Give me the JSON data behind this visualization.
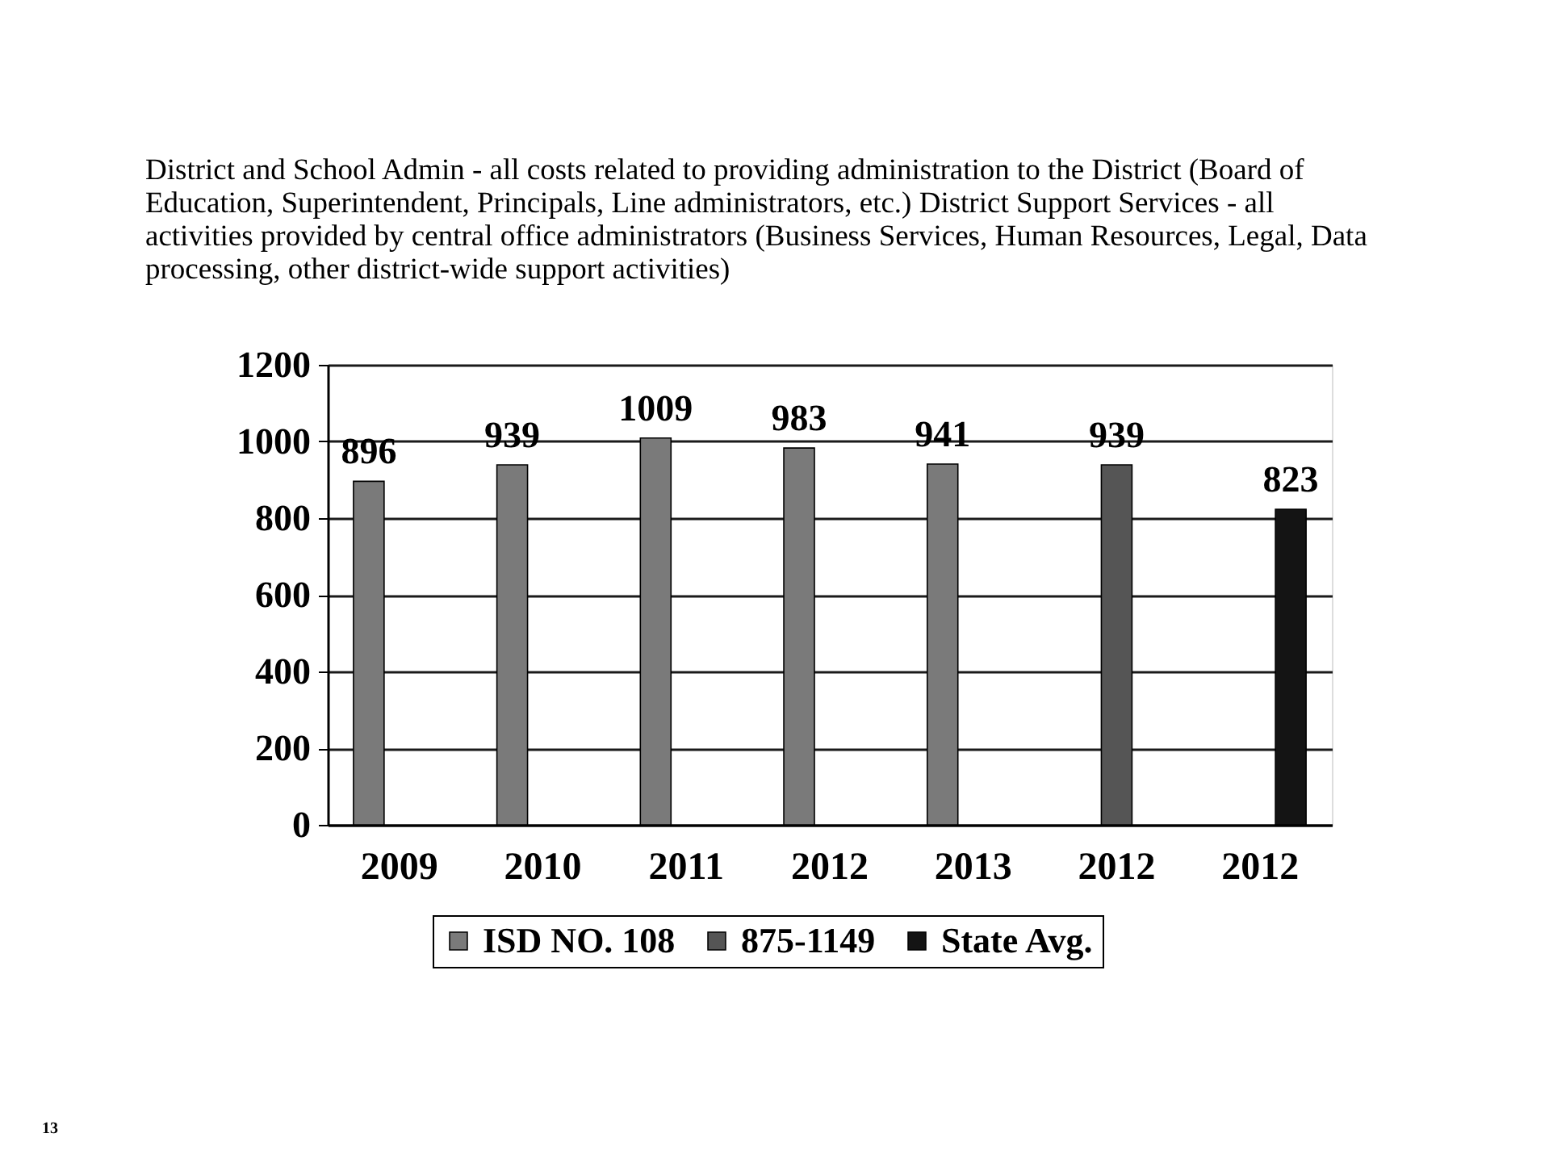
{
  "chart_data": {
    "type": "bar",
    "subtitle": "District and School Admin - all costs related to providing administration to the District (Board of Education, Superintendent, Principals, Line administrators, etc.) District Support Services - all activities provided by central office administrators (Business Services, Human Resources, Legal, Data processing, other district-wide support activities)",
    "categories": [
      "2009",
      "2010",
      "2011",
      "2012",
      "2013",
      "2012",
      "2012"
    ],
    "series": [
      {
        "name": "ISD NO. 108",
        "color": "#7a7a7a",
        "values": [
          896,
          939,
          1009,
          983,
          941,
          null,
          null
        ]
      },
      {
        "name": "875-1149",
        "color": "#555555",
        "values": [
          null,
          null,
          null,
          null,
          null,
          939,
          null
        ]
      },
      {
        "name": "State Avg.",
        "color": "#141414",
        "values": [
          null,
          null,
          null,
          null,
          null,
          null,
          823
        ]
      }
    ],
    "ylim": [
      0,
      1200
    ],
    "yticks": [
      0,
      200,
      400,
      600,
      800,
      1000,
      1200
    ],
    "grid": "y",
    "legend": "bottom",
    "data_labels": true,
    "annotations": [
      "13"
    ]
  }
}
